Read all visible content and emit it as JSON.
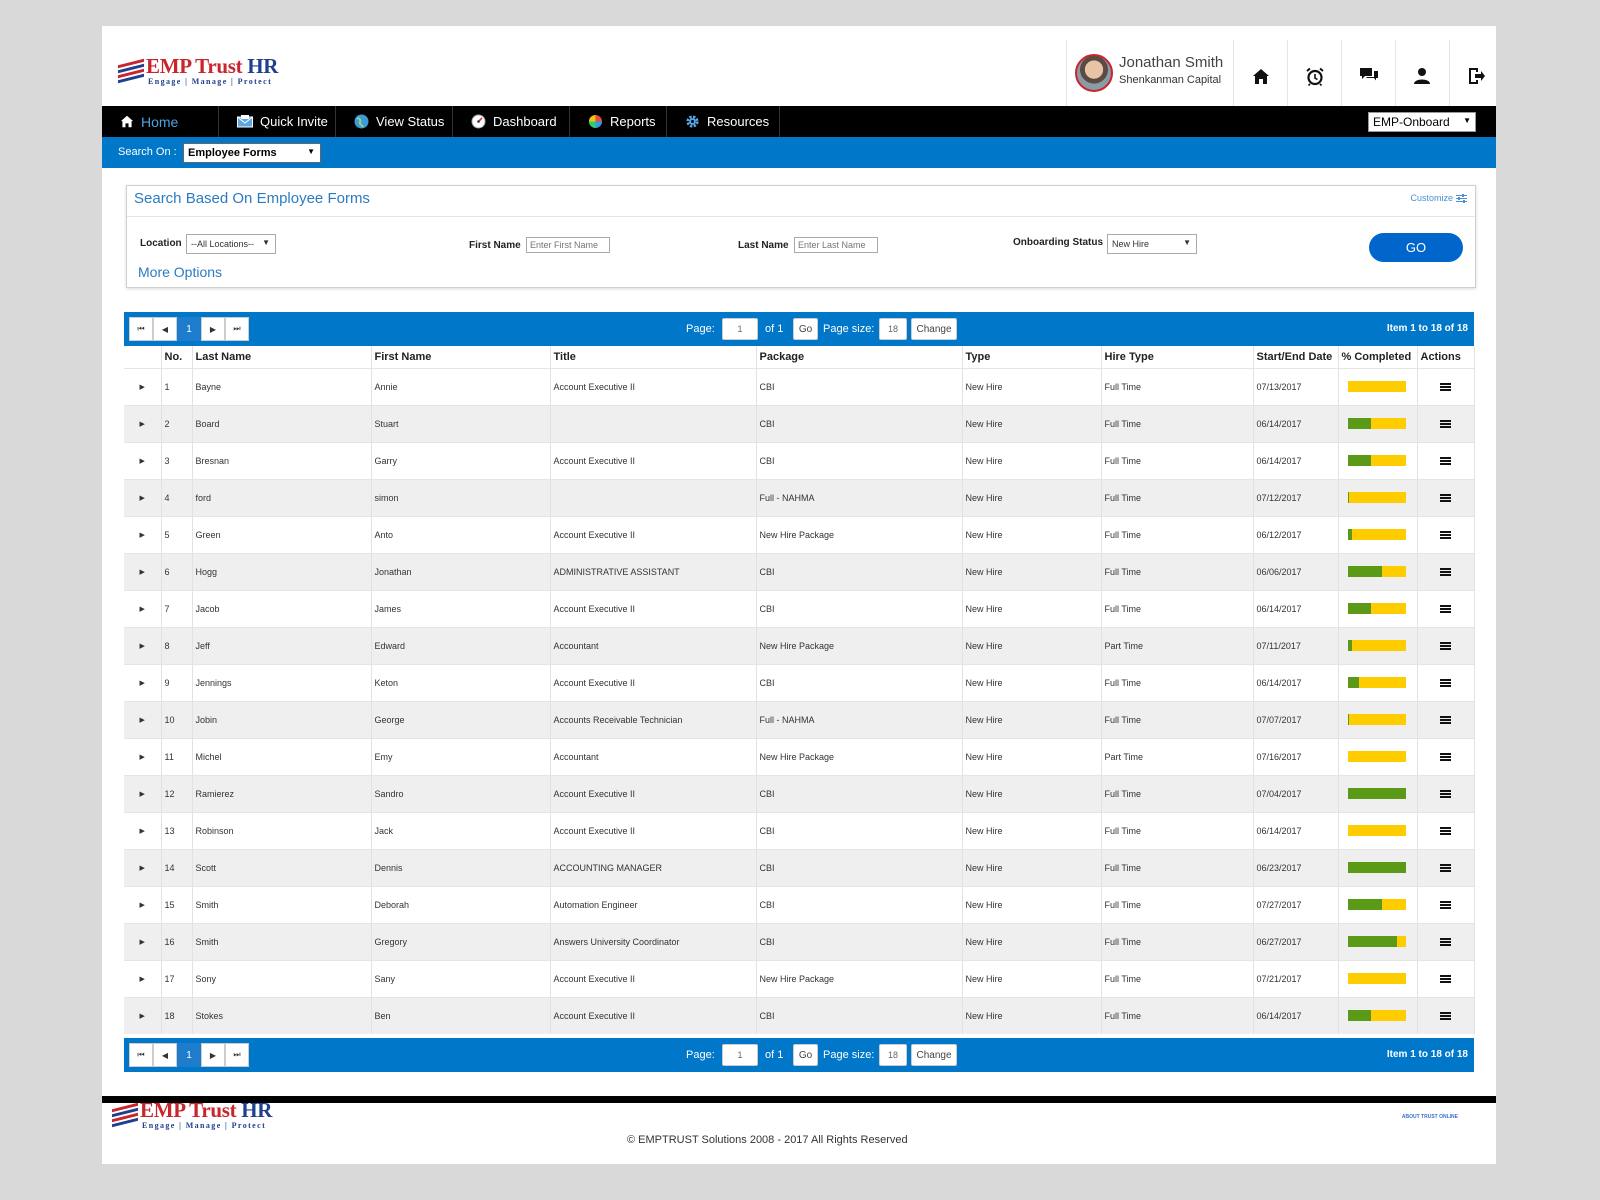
{
  "brand": {
    "name_emp": "EMP Trust",
    "name_hr": "HR",
    "tagline": "Engage | Manage | Protect"
  },
  "user": {
    "name": "Jonathan Smith",
    "company": "Shenkanman Capital"
  },
  "header_icons": [
    "home-icon",
    "alarm-clock-icon",
    "chat-icon",
    "user-icon",
    "logout-icon"
  ],
  "nav": {
    "items": [
      {
        "label": "Home",
        "icon": "home-icon"
      },
      {
        "label": "Quick Invite",
        "icon": "envelope-icon"
      },
      {
        "label": "View Status",
        "icon": "globe-icon"
      },
      {
        "label": "Dashboard",
        "icon": "gauge-icon"
      },
      {
        "label": "Reports",
        "icon": "pie-chart-icon"
      },
      {
        "label": "Resources",
        "icon": "gear-icon"
      }
    ],
    "module_select": "EMP-Onboard"
  },
  "search_on": {
    "label": "Search On :",
    "value": "Employee Forms"
  },
  "panel": {
    "title": "Search Based On Employee Forms",
    "customize": "Customize",
    "location_label": "Location",
    "location_value": "--All Locations--",
    "first_name_label": "First Name",
    "first_name_placeholder": "Enter First Name",
    "last_name_label": "Last Name",
    "last_name_placeholder": "Enter Last Name",
    "status_label": "Onboarding Status",
    "status_value": "New Hire",
    "more_options": "More Options",
    "go": "GO"
  },
  "pager": {
    "current": "1",
    "page_label": "Page:",
    "page_value": "1",
    "of": "of 1",
    "go": "Go",
    "size_label": "Page size:",
    "size_value": "18",
    "change": "Change",
    "info": "Item 1 to 18 of 18"
  },
  "columns": [
    "",
    "No.",
    "Last Name",
    "First Name",
    "Title",
    "Package",
    "Type",
    "Hire Type",
    "Start/End Date",
    "% Completed",
    "Actions"
  ],
  "rows": [
    {
      "no": "1",
      "last": "Bayne",
      "first": "Annie",
      "title": "Account Executive II",
      "package": "CBI",
      "type": "New Hire",
      "hire": "Full Time",
      "date": "07/13/2017",
      "pct": 0
    },
    {
      "no": "2",
      "last": "Board",
      "first": "Stuart",
      "title": "",
      "package": "CBI",
      "type": "New Hire",
      "hire": "Full Time",
      "date": "06/14/2017",
      "pct": 40
    },
    {
      "no": "3",
      "last": "Bresnan",
      "first": "Garry",
      "title": "Account Executive II",
      "package": "CBI",
      "type": "New Hire",
      "hire": "Full Time",
      "date": "06/14/2017",
      "pct": 40
    },
    {
      "no": "4",
      "last": "ford",
      "first": "simon",
      "title": "",
      "package": "Full - NAHMA",
      "type": "New Hire",
      "hire": "Full Time",
      "date": "07/12/2017",
      "pct": 3
    },
    {
      "no": "5",
      "last": "Green",
      "first": "Anto",
      "title": "Account Executive II",
      "package": "New Hire Package",
      "type": "New Hire",
      "hire": "Full Time",
      "date": "06/12/2017",
      "pct": 7
    },
    {
      "no": "6",
      "last": "Hogg",
      "first": "Jonathan",
      "title": "ADMINISTRATIVE ASSISTANT",
      "package": "CBI",
      "type": "New Hire",
      "hire": "Full Time",
      "date": "06/06/2017",
      "pct": 60
    },
    {
      "no": "7",
      "last": "Jacob",
      "first": "James",
      "title": "Account Executive II",
      "package": "CBI",
      "type": "New Hire",
      "hire": "Full Time",
      "date": "06/14/2017",
      "pct": 40
    },
    {
      "no": "8",
      "last": "Jeff",
      "first": "Edward",
      "title": "Accountant",
      "package": "New Hire Package",
      "type": "New Hire",
      "hire": "Part Time",
      "date": "07/11/2017",
      "pct": 7
    },
    {
      "no": "9",
      "last": "Jennings",
      "first": "Keton",
      "title": "Account Executive II",
      "package": "CBI",
      "type": "New Hire",
      "hire": "Full Time",
      "date": "06/14/2017",
      "pct": 20
    },
    {
      "no": "10",
      "last": "Jobin",
      "first": "George",
      "title": "Accounts Receivable Technician",
      "package": "Full - NAHMA",
      "type": "New Hire",
      "hire": "Full Time",
      "date": "07/07/2017",
      "pct": 3
    },
    {
      "no": "11",
      "last": "Michel",
      "first": "Emy",
      "title": "Accountant",
      "package": "New Hire Package",
      "type": "New Hire",
      "hire": "Part Time",
      "date": "07/16/2017",
      "pct": 0
    },
    {
      "no": "12",
      "last": "Ramierez",
      "first": "Sandro",
      "title": "Account Executive II",
      "package": "CBI",
      "type": "New Hire",
      "hire": "Full Time",
      "date": "07/04/2017",
      "pct": 100
    },
    {
      "no": "13",
      "last": "Robinson",
      "first": "Jack",
      "title": "Account Executive II",
      "package": "CBI",
      "type": "New Hire",
      "hire": "Full Time",
      "date": "06/14/2017",
      "pct": 0
    },
    {
      "no": "14",
      "last": "Scott",
      "first": "Dennis",
      "title": "ACCOUNTING MANAGER",
      "package": "CBI",
      "type": "New Hire",
      "hire": "Full Time",
      "date": "06/23/2017",
      "pct": 100
    },
    {
      "no": "15",
      "last": "Smith",
      "first": "Deborah",
      "title": "Automation Engineer",
      "package": "CBI",
      "type": "New Hire",
      "hire": "Full Time",
      "date": "07/27/2017",
      "pct": 60
    },
    {
      "no": "16",
      "last": "Smith",
      "first": "Gregory",
      "title": "Answers University Coordinator",
      "package": "CBI",
      "type": "New Hire",
      "hire": "Full Time",
      "date": "06/27/2017",
      "pct": 85
    },
    {
      "no": "17",
      "last": "Sony",
      "first": "Sany",
      "title": "Account Executive II",
      "package": "New Hire Package",
      "type": "New Hire",
      "hire": "Full Time",
      "date": "07/21/2017",
      "pct": 0
    },
    {
      "no": "18",
      "last": "Stokes",
      "first": "Ben",
      "title": "Account Executive II",
      "package": "CBI",
      "type": "New Hire",
      "hire": "Full Time",
      "date": "06/14/2017",
      "pct": 40
    }
  ],
  "footer": {
    "copyright": "© EMPTRUST Solutions 2008 - 2017 All Rights Reserved",
    "about": "ABOUT TRUST ONLINE"
  },
  "colors": {
    "primary_blue": "#0077c8",
    "nav_black": "#000000",
    "progress_green": "#5b9a16",
    "progress_yellow": "#ffcc00",
    "brand_red": "#c8252c",
    "brand_navy": "#1f3f8f"
  }
}
